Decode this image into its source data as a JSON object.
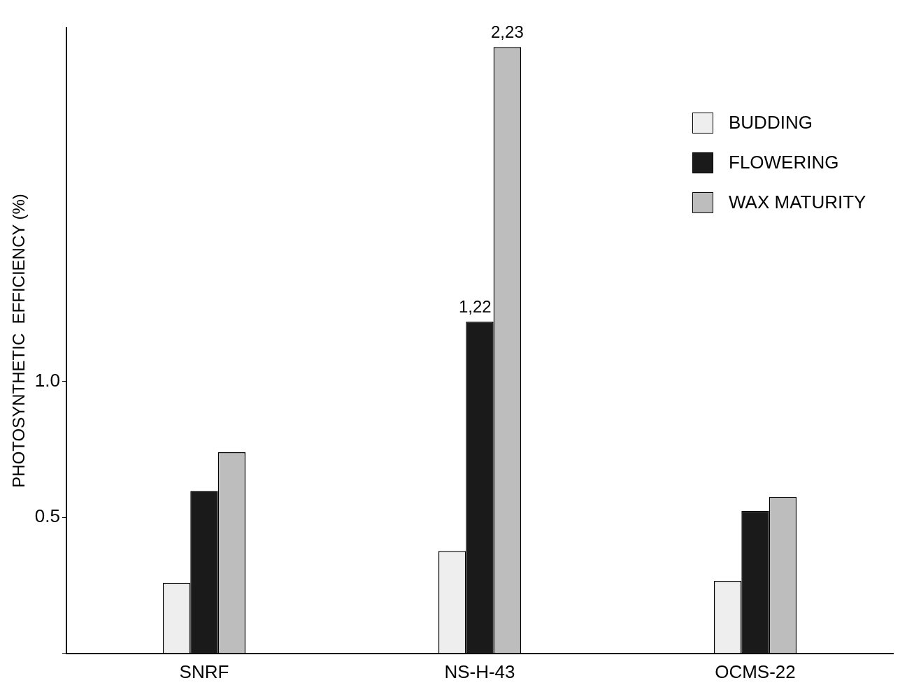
{
  "chart_data": {
    "type": "bar",
    "ylabel": "PHOTOSYNTHETIC  EFFICIENCY (%)",
    "categories": [
      "SNRF",
      "NS-H-43",
      "OCMS-22"
    ],
    "series": [
      {
        "name": "BUDDING",
        "color": "#eeeeee",
        "values": [
          0.26,
          0.377,
          0.267
        ]
      },
      {
        "name": "FLOWERING",
        "color": "#1a1a1a",
        "values": [
          0.597,
          1.22,
          0.524
        ],
        "value_labels": [
          null,
          "1,22",
          null
        ]
      },
      {
        "name": "WAX  MATURITY",
        "color": "#bdbdbd",
        "values": [
          0.74,
          2.23,
          0.576
        ],
        "value_labels": [
          null,
          "2,23",
          null
        ]
      }
    ],
    "ylim": [
      0,
      2.3
    ],
    "yticks": [
      {
        "value": 0,
        "label": null
      },
      {
        "value": 0.5,
        "label": "0.5"
      },
      {
        "value": 1,
        "label": "1.0"
      }
    ],
    "grid": false,
    "legend": "top right"
  }
}
